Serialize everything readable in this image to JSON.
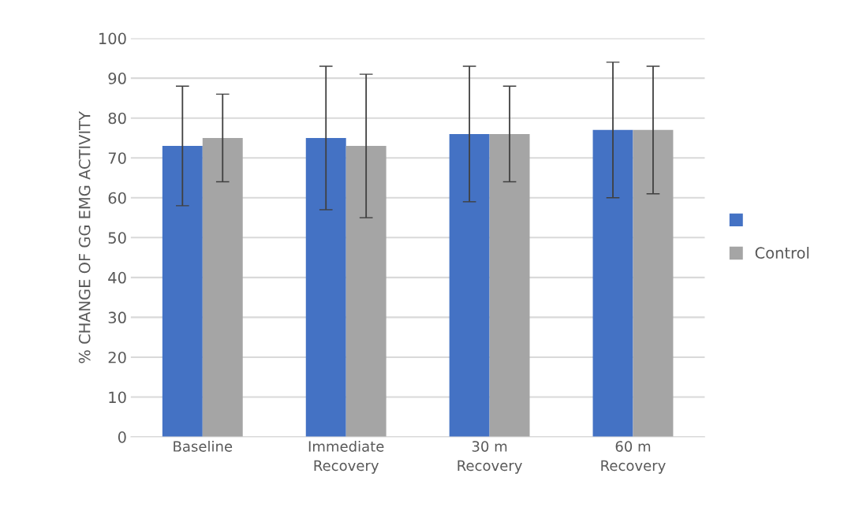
{
  "chart_data": {
    "type": "bar",
    "ylabel": "% CHANGE OF GG EMG ACTIVITY",
    "categories": [
      "Baseline",
      "Immediate\nRecovery",
      "30 m\nRecovery",
      "60 m\nRecovery"
    ],
    "series": [
      {
        "color": "#4472c4",
        "values": [
          73,
          75,
          76,
          77
        ],
        "errors": [
          [
            58,
            88
          ],
          [
            57,
            93
          ],
          [
            59,
            93
          ],
          [
            60,
            94
          ]
        ]
      },
      {
        "name": "Control",
        "color": "#a5a5a5",
        "values": [
          75,
          73,
          76,
          77
        ],
        "errors": [
          [
            64,
            86
          ],
          [
            55,
            91
          ],
          [
            64,
            88
          ],
          [
            61,
            93
          ]
        ]
      }
    ],
    "ylim": [
      0,
      100
    ],
    "yticks": [
      0,
      10,
      20,
      30,
      40,
      50,
      60,
      70,
      80,
      90,
      100
    ],
    "grid": "y",
    "legend": "right"
  }
}
